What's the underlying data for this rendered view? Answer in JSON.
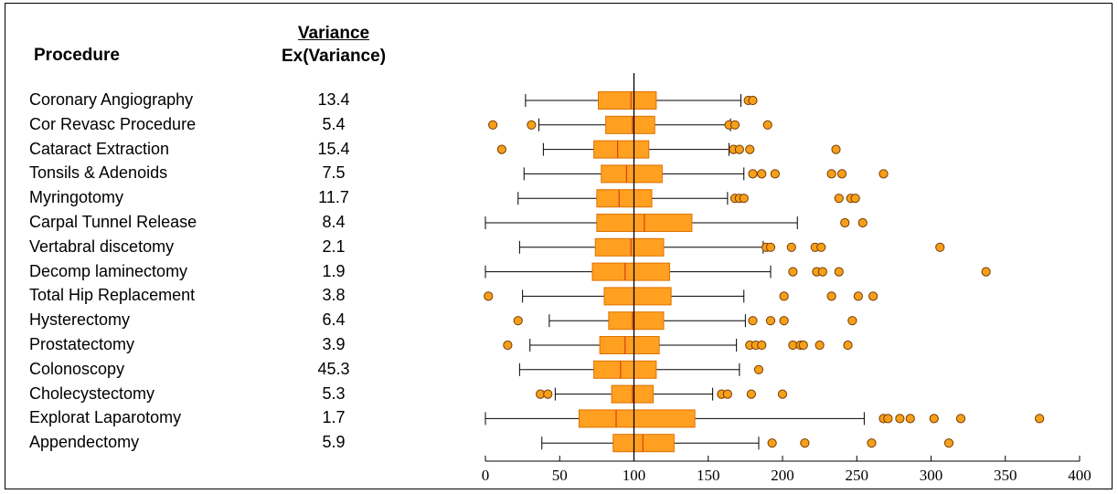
{
  "headers": {
    "procedure": "Procedure",
    "variance_top": " Variance",
    "variance_bottom": "Ex(Variance)"
  },
  "colors": {
    "box_fill": "#FFA020",
    "box_stroke": "#E07000",
    "median": "#D94010",
    "outlier": "#F5A01A",
    "outlier_stroke": "#7A3A00"
  },
  "chart_data": {
    "type": "boxplot",
    "title": "",
    "xlabel": "",
    "ylabel": "",
    "xlim": [
      0,
      400
    ],
    "xticks": [
      0,
      50,
      100,
      150,
      200,
      250,
      300,
      350,
      400
    ],
    "reference_line": 100,
    "grid": false,
    "rows": [
      {
        "procedure": "Coronary Angiography",
        "variance": "13.4",
        "whisker_low": 27,
        "q1": 76,
        "median": 98,
        "q3": 115,
        "whisker_high": 172,
        "outliers": [
          177,
          180
        ]
      },
      {
        "procedure": "Cor Revasc Procedure",
        "variance": "5.4",
        "whisker_low": 36,
        "q1": 81,
        "median": 99,
        "q3": 114,
        "whisker_high": 165,
        "outliers": [
          5,
          31,
          164,
          168,
          190
        ]
      },
      {
        "procedure": "Cataract Extraction",
        "variance": "15.4",
        "whisker_low": 39,
        "q1": 73,
        "median": 89,
        "q3": 110,
        "whisker_high": 164,
        "outliers": [
          11,
          167,
          171,
          178,
          236
        ]
      },
      {
        "procedure": "Tonsils & Adenoids",
        "variance": "7.5",
        "whisker_low": 26,
        "q1": 78,
        "median": 95,
        "q3": 119,
        "whisker_high": 174,
        "outliers": [
          180,
          186,
          195,
          233,
          240,
          268
        ]
      },
      {
        "procedure": "Myringotomy",
        "variance": "11.7",
        "whisker_low": 22,
        "q1": 75,
        "median": 90,
        "q3": 112,
        "whisker_high": 163,
        "outliers": [
          168,
          171,
          174,
          238,
          246,
          249
        ]
      },
      {
        "procedure": "Carpal Tunnel Release",
        "variance": "8.4",
        "whisker_low": 0,
        "q1": 75,
        "median": 107,
        "q3": 139,
        "whisker_high": 210,
        "outliers": [
          242,
          254
        ]
      },
      {
        "procedure": "Vertabral discetomy",
        "variance": "2.1",
        "whisker_low": 23,
        "q1": 74,
        "median": 98,
        "q3": 120,
        "whisker_high": 187,
        "outliers": [
          189,
          192,
          206,
          222,
          226,
          306
        ]
      },
      {
        "procedure": "Decomp laminectomy",
        "variance": "1.9",
        "whisker_low": 0,
        "q1": 72,
        "median": 94,
        "q3": 124,
        "whisker_high": 192,
        "outliers": [
          207,
          223,
          227,
          238,
          337
        ]
      },
      {
        "procedure": "Total Hip Replacement",
        "variance": "3.8",
        "whisker_low": 25,
        "q1": 80,
        "median": 100,
        "q3": 125,
        "whisker_high": 174,
        "outliers": [
          2,
          201,
          233,
          251,
          261
        ]
      },
      {
        "procedure": "Hysterectomy",
        "variance": "6.4",
        "whisker_low": 43,
        "q1": 83,
        "median": 99,
        "q3": 120,
        "whisker_high": 175,
        "outliers": [
          22,
          180,
          192,
          201,
          247
        ]
      },
      {
        "procedure": "Prostatectomy",
        "variance": "3.9",
        "whisker_low": 30,
        "q1": 77,
        "median": 94,
        "q3": 117,
        "whisker_high": 169,
        "outliers": [
          15,
          178,
          182,
          186,
          207,
          212,
          214,
          225,
          244
        ]
      },
      {
        "procedure": "Colonoscopy",
        "variance": "45.3",
        "whisker_low": 23,
        "q1": 73,
        "median": 91,
        "q3": 115,
        "whisker_high": 171,
        "outliers": [
          184
        ]
      },
      {
        "procedure": "Cholecystectomy",
        "variance": "5.3",
        "whisker_low": 47,
        "q1": 85,
        "median": 99,
        "q3": 113,
        "whisker_high": 153,
        "outliers": [
          37,
          42,
          159,
          163,
          179,
          200
        ]
      },
      {
        "procedure": "Explorat Laparotomy",
        "variance": "1.7",
        "whisker_low": 0,
        "q1": 63,
        "median": 88,
        "q3": 141,
        "whisker_high": 255,
        "outliers": [
          268,
          271,
          279,
          286,
          302,
          320,
          373
        ]
      },
      {
        "procedure": "Appendectomy",
        "variance": "5.9",
        "whisker_low": 38,
        "q1": 86,
        "median": 106,
        "q3": 127,
        "whisker_high": 184,
        "outliers": [
          193,
          215,
          260,
          312
        ]
      }
    ]
  }
}
